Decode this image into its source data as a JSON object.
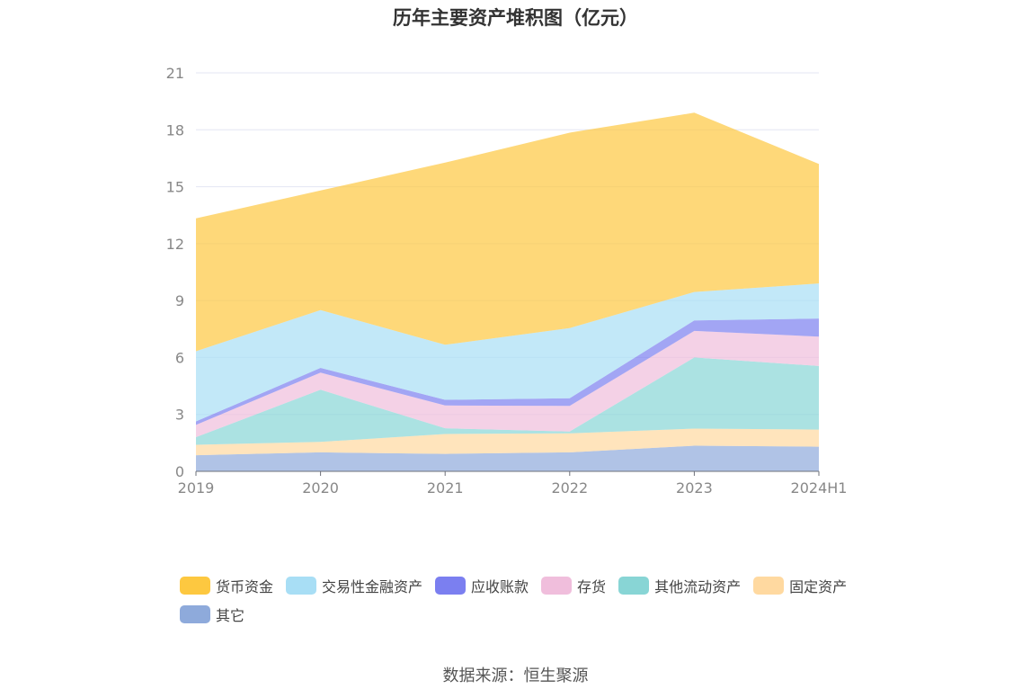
{
  "title": "历年主要资产堆积图（亿元）",
  "source": "数据来源：恒生聚源",
  "chart_data": {
    "type": "area",
    "stacked": true,
    "categories": [
      "2019",
      "2020",
      "2021",
      "2022",
      "2023",
      "2024H1"
    ],
    "ylim": [
      0,
      21
    ],
    "yticks": [
      0,
      3,
      6,
      9,
      12,
      15,
      18,
      21
    ],
    "grid": true,
    "legend_position": "bottom",
    "series": [
      {
        "name": "其它",
        "color": "#8eaadb",
        "values": [
          0.85,
          1.0,
          0.92,
          1.0,
          1.35,
          1.3
        ]
      },
      {
        "name": "固定资产",
        "color": "#ffd9a0",
        "values": [
          0.55,
          0.55,
          1.05,
          1.0,
          0.9,
          0.9
        ]
      },
      {
        "name": "其他流动资产",
        "color": "#88d5d5",
        "values": [
          0.4,
          2.75,
          0.3,
          0.1,
          3.75,
          3.35
        ]
      },
      {
        "name": "存货",
        "color": "#f0bedc",
        "values": [
          0.65,
          0.9,
          1.2,
          1.35,
          1.4,
          1.55
        ]
      },
      {
        "name": "应收账款",
        "color": "#7b7ff0",
        "values": [
          0.18,
          0.25,
          0.3,
          0.4,
          0.55,
          0.95
        ]
      },
      {
        "name": "交易性金融资产",
        "color": "#a8def5",
        "values": [
          3.7,
          3.05,
          2.9,
          3.7,
          1.5,
          1.85
        ]
      },
      {
        "name": "货币资金",
        "color": "#fdc840",
        "values": [
          7.0,
          6.3,
          9.6,
          10.3,
          9.45,
          6.3
        ]
      }
    ],
    "legend_order": [
      "货币资金",
      "交易性金融资产",
      "应收账款",
      "存货",
      "其他流动资产",
      "固定资产",
      "其它"
    ]
  }
}
